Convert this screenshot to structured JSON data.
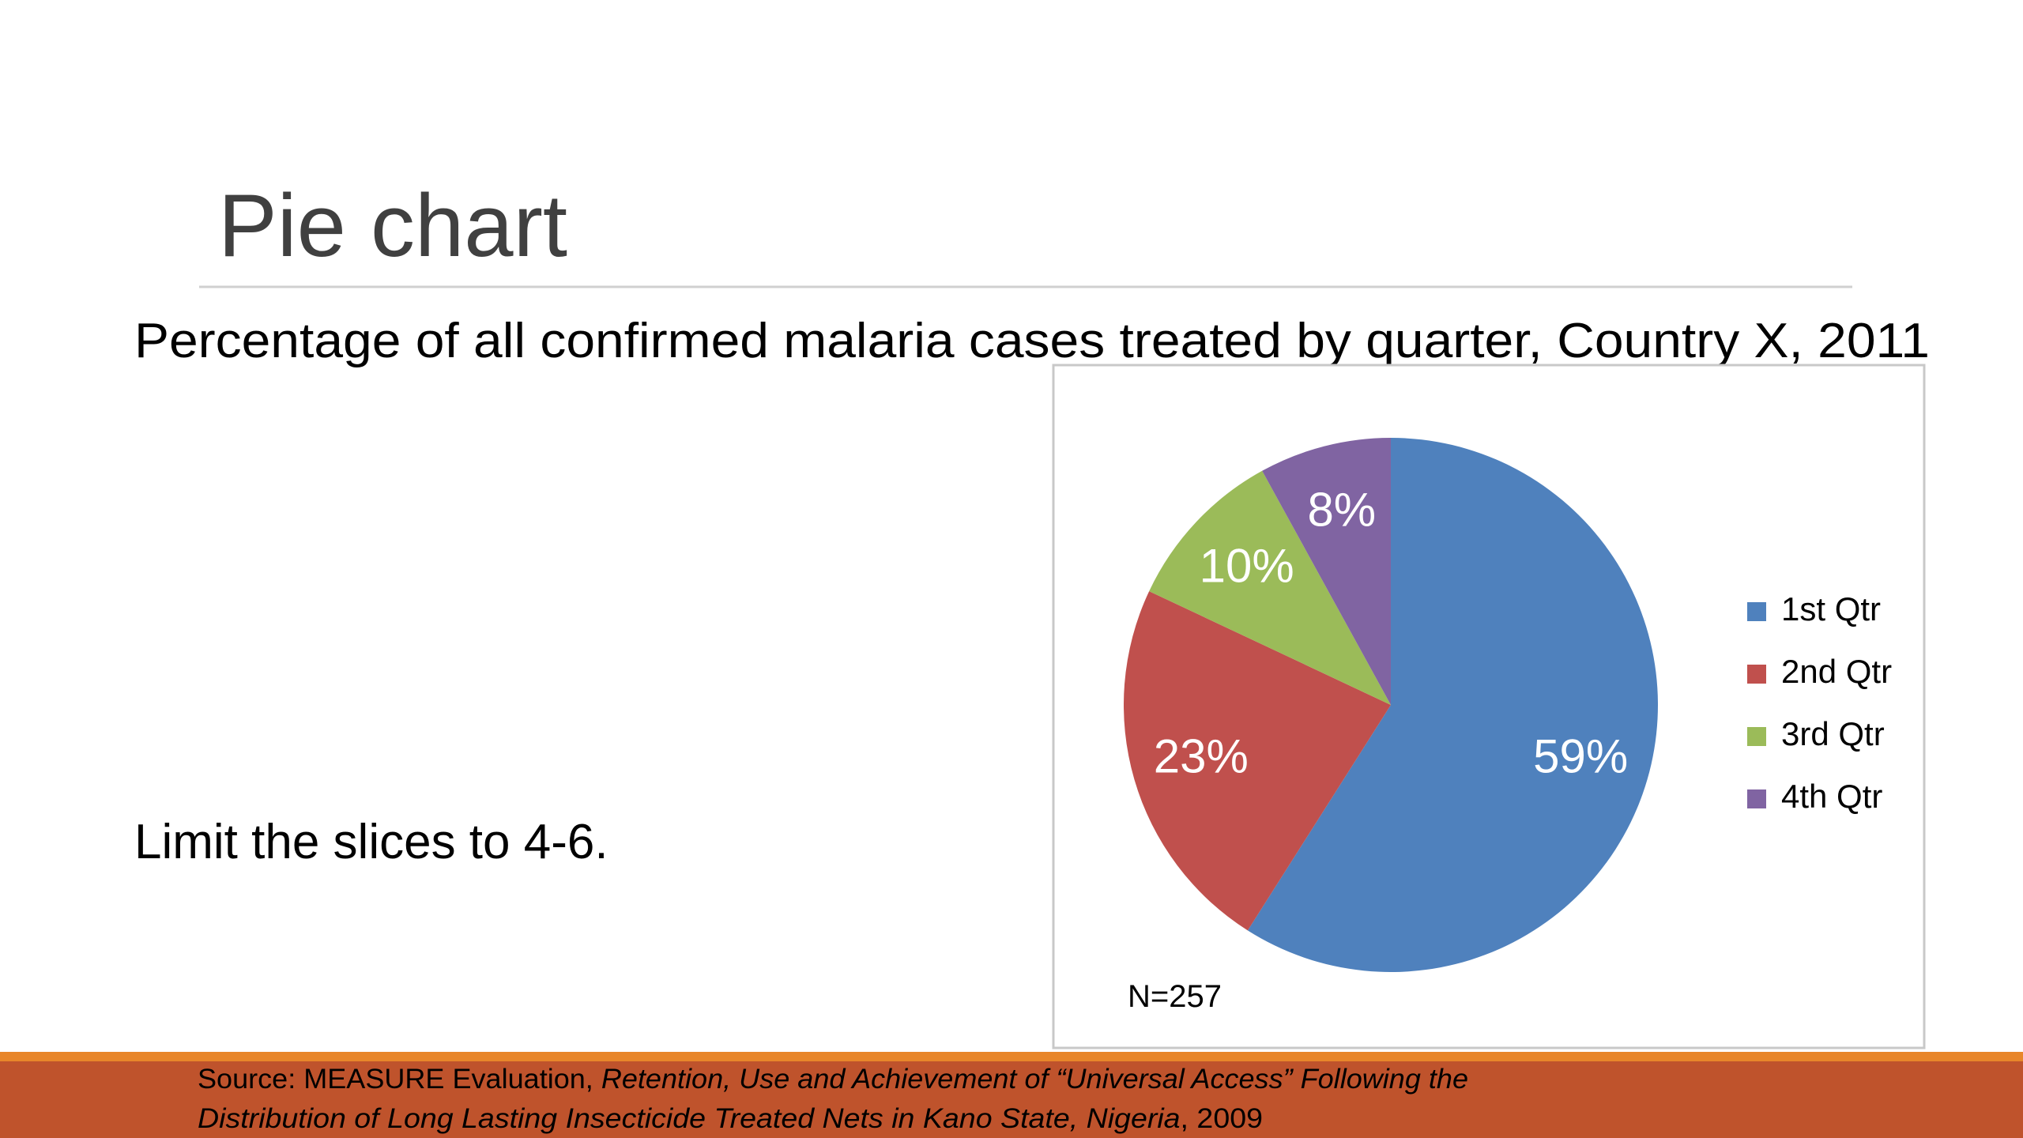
{
  "slide_title": "Pie chart",
  "note": "Limit the slices to 4-6.",
  "source": [
    "Source: MEASURE Evaluation, ",
    "Retention, Use and Achievement of “Universal Access” Following the",
    "Distribution of Long Lasting Insecticide Treated Nets in Kano State, Nigeria",
    ", 2009"
  ],
  "chart_data": {
    "type": "pie",
    "title": "Percentage of all confirmed malaria cases treated by quarter, Country X, 2011",
    "annotation": "N=257",
    "legend": "right",
    "series": [
      {
        "name": "1st Qtr",
        "color": "#4f81bd"
      },
      {
        "name": "2nd Qtr",
        "color": "#c0504d"
      },
      {
        "name": "3rd Qtr",
        "color": "#9bbb59"
      },
      {
        "name": "4th Qtr",
        "color": "#8064a2"
      }
    ],
    "values": [
      59,
      23,
      10,
      8
    ],
    "value_labels": [
      "59%",
      "23%",
      "10%",
      "8%"
    ]
  }
}
